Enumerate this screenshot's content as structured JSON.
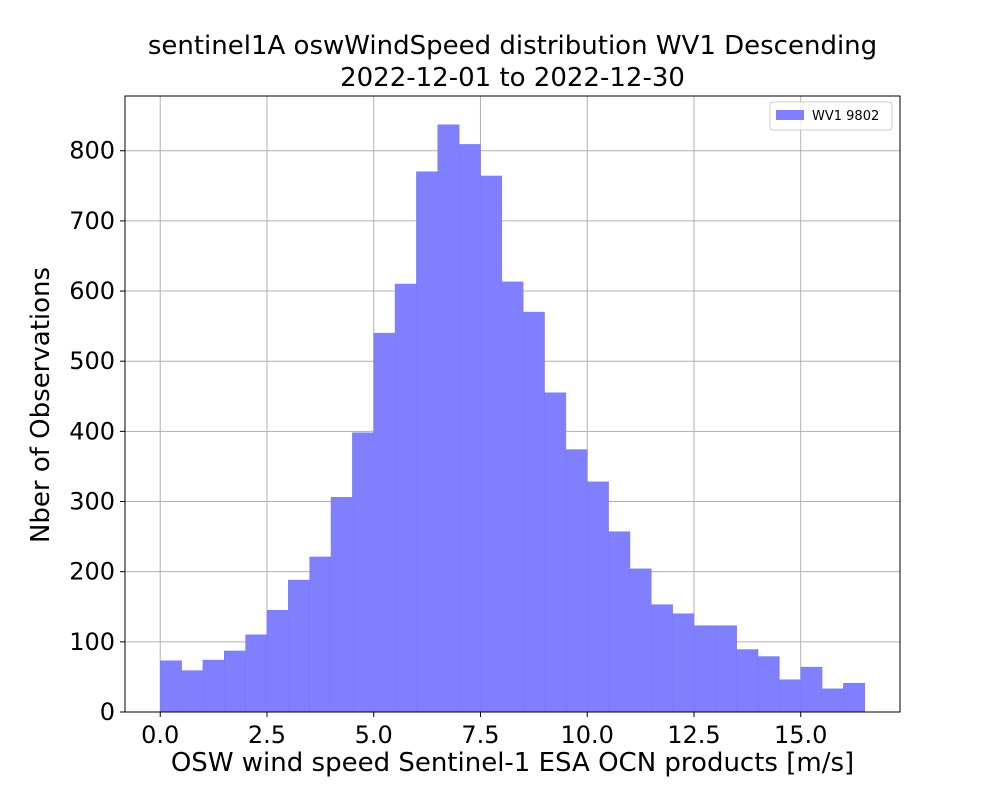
{
  "chart_data": {
    "type": "bar",
    "title": "sentinel1A oswWindSpeed distribution WV1 Descending",
    "subtitle": "2022-12-01 to 2022-12-30",
    "xlabel": "OSW wind speed Sentinel-1 ESA OCN products [m/s]",
    "ylabel": "Nber of Observations",
    "xlim": [
      -0.825,
      17.325
    ],
    "ylim": [
      0,
      878
    ],
    "xticks": [
      "0.0",
      "2.5",
      "5.0",
      "7.5",
      "10.0",
      "12.5",
      "15.0"
    ],
    "yticks": [
      "0",
      "100",
      "200",
      "300",
      "400",
      "500",
      "600",
      "700",
      "800"
    ],
    "grid": true,
    "legend_position": "top-right",
    "bin_width": 0.5,
    "bin_starts": [
      0.0,
      0.5,
      1.0,
      1.5,
      2.0,
      2.5,
      3.0,
      3.5,
      4.0,
      4.5,
      5.0,
      5.5,
      6.0,
      6.5,
      7.0,
      7.5,
      8.0,
      8.5,
      9.0,
      9.5,
      10.0,
      10.5,
      11.0,
      11.5,
      12.0,
      12.5,
      13.0,
      13.5,
      14.0,
      14.5,
      15.0,
      15.5,
      16.0
    ],
    "series": [
      {
        "name": "WV1 9802",
        "color": "#8080ff",
        "values": [
          73,
          59,
          74,
          87,
          110,
          145,
          188,
          221,
          306,
          398,
          540,
          610,
          770,
          837,
          809,
          764,
          613,
          570,
          455,
          374,
          328,
          257,
          204,
          153,
          140,
          123,
          123,
          89,
          79,
          46,
          64,
          33,
          41
        ]
      }
    ]
  }
}
